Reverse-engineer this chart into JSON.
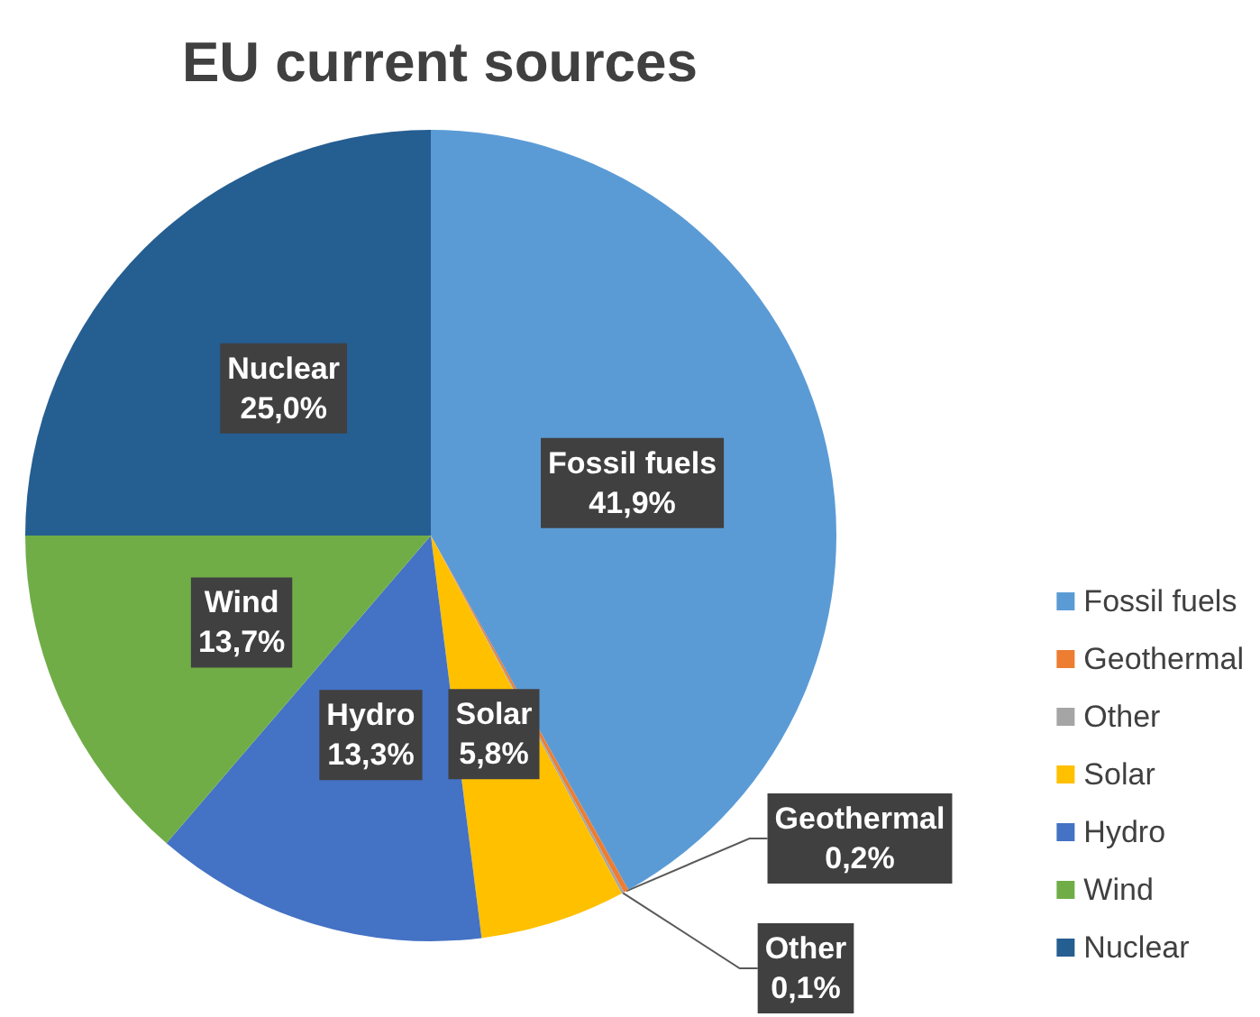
{
  "chart_data": {
    "type": "pie",
    "title": "EU current sources",
    "categories": [
      "Fossil fuels",
      "Geothermal",
      "Other",
      "Solar",
      "Hydro",
      "Wind",
      "Nuclear"
    ],
    "values": [
      41.9,
      0.2,
      0.1,
      5.8,
      13.3,
      13.7,
      25.0
    ],
    "value_labels": [
      "41,9%",
      "0,2%",
      "0,1%",
      "5,8%",
      "13,3%",
      "13,7%",
      "25,0%"
    ],
    "colors": [
      "#5b9bd5",
      "#ed7d31",
      "#a5a5a5",
      "#ffc000",
      "#4472c4",
      "#70ad47",
      "#255e91"
    ],
    "legend": "right"
  }
}
